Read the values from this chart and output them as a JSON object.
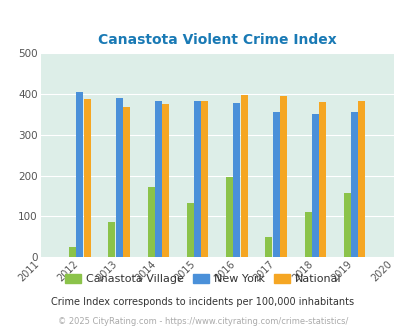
{
  "title": "Canastota Violent Crime Index",
  "all_years": [
    2011,
    2012,
    2013,
    2014,
    2015,
    2016,
    2017,
    2018,
    2019,
    2020
  ],
  "data_years": [
    2012,
    2013,
    2014,
    2015,
    2016,
    2017,
    2018,
    2019
  ],
  "canastota": [
    25,
    87,
    172,
    133,
    197,
    50,
    112,
    157
  ],
  "new_york": [
    405,
    390,
    383,
    381,
    377,
    355,
    351,
    356
  ],
  "national": [
    387,
    367,
    376,
    383,
    397,
    394,
    380,
    381
  ],
  "canastota_color": "#8bc34a",
  "new_york_color": "#4a90d9",
  "national_color": "#f5a623",
  "plot_bg": "#ddeee8",
  "ylim": [
    0,
    500
  ],
  "yticks": [
    0,
    100,
    200,
    300,
    400,
    500
  ],
  "legend_labels": [
    "Canastota Village",
    "New York",
    "National"
  ],
  "footnote1": "Crime Index corresponds to incidents per 100,000 inhabitants",
  "footnote2": "© 2025 CityRating.com - https://www.cityrating.com/crime-statistics/",
  "title_color": "#1a7ab5",
  "footnote1_color": "#333333",
  "footnote2_color": "#aaaaaa",
  "bar_width": 0.18,
  "bar_gap": 0.005
}
